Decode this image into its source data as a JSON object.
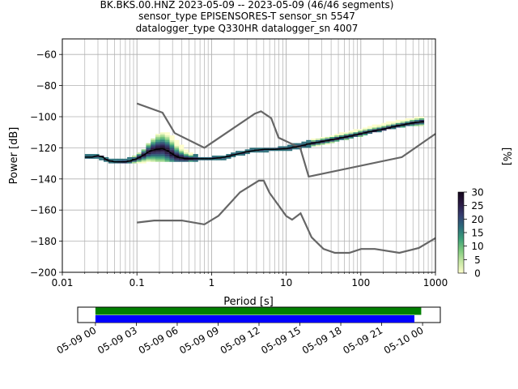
{
  "title": {
    "line1": "BK.BKS.00.HNZ   2023-05-09 -- 2023-05-09  (46/46 segments)",
    "line2": "sensor_type EPISENSORES-T sensor_sn 5547",
    "line3": "datalogger_type Q330HR datalogger_sn 4007"
  },
  "chart_data": [
    {
      "type": "heatmap",
      "subtype": "probabilistic-power-spectral-density",
      "xlabel": "Period [s]",
      "ylabel": "Power [dB]",
      "xscale": "log",
      "xlim": [
        0.01,
        1000
      ],
      "ylim": [
        -200,
        -50
      ],
      "x_ticks": [
        0.01,
        0.1,
        1,
        10,
        100,
        1000
      ],
      "x_tick_labels": [
        "0.01",
        "0.1",
        "1",
        "10",
        "100",
        "1000"
      ],
      "y_ticks": [
        -200,
        -180,
        -160,
        -140,
        -120,
        -100,
        -80,
        -60
      ],
      "y_tick_labels": [
        "−200",
        "−180",
        "−160",
        "−140",
        "−120",
        "−100",
        "−80",
        "−60"
      ],
      "grid": true,
      "colorbar": {
        "label": "[%]",
        "range": [
          0,
          30
        ],
        "ticks": [
          0,
          5,
          10,
          15,
          20,
          25,
          30
        ],
        "tick_labels": [
          "0",
          "5",
          "10",
          "15",
          "20",
          "25",
          "30"
        ],
        "colormap": [
          "#fefecc",
          "#c5e7a3",
          "#7cc97d",
          "#3a9d79",
          "#2c6a7b",
          "#353d6f",
          "#2a1a43",
          "#14051c"
        ]
      },
      "noise_models": {
        "color": "#666666",
        "high": {
          "x": [
            0.1,
            0.22,
            0.32,
            0.8,
            3.8,
            4.6,
            6.3,
            7.9,
            15.4,
            20,
            354.8,
            1000
          ],
          "y": [
            -91.5,
            -97.4,
            -110.5,
            -120,
            -98,
            -96.5,
            -101,
            -113.5,
            -120,
            -138.5,
            -126,
            -111
          ]
        },
        "low": {
          "x": [
            0.1,
            0.17,
            0.4,
            0.8,
            1.24,
            2.4,
            4.3,
            5,
            6,
            10,
            12,
            15.6,
            21.9,
            31.6,
            45,
            70,
            101,
            154,
            328,
            600,
            1000
          ],
          "y": [
            -168,
            -166.7,
            -166.7,
            -169.2,
            -163.7,
            -148.6,
            -141.1,
            -141.1,
            -149,
            -163.8,
            -166.2,
            -162.1,
            -177.5,
            -185,
            -187.5,
            -187.5,
            -185,
            -185,
            -187.5,
            -184.4,
            -178
          ]
        }
      },
      "mode_curve": {
        "color": "#000000",
        "x": [
          0.02,
          0.025,
          0.03,
          0.035,
          0.04,
          0.05,
          0.06,
          0.07,
          0.08,
          0.1,
          0.12,
          0.15,
          0.18,
          0.22,
          0.26,
          0.3,
          0.35,
          0.45,
          0.6,
          0.8,
          1,
          1.5,
          2,
          3,
          4,
          5,
          7,
          10,
          15,
          20,
          30,
          50,
          80,
          120,
          200,
          300,
          500,
          700
        ],
        "y": [
          -126,
          -126,
          -125,
          -126,
          -128,
          -129,
          -129,
          -129,
          -128.5,
          -127,
          -125,
          -122,
          -121,
          -120.5,
          -122,
          -124,
          -126,
          -127,
          -127,
          -127,
          -127,
          -126,
          -124.5,
          -122.5,
          -121.5,
          -121,
          -121,
          -120.5,
          -119,
          -117.5,
          -116,
          -114,
          -112,
          -110,
          -108,
          -106,
          -104,
          -103
        ]
      },
      "density_cloud": {
        "x": [
          0.02,
          0.03,
          0.04,
          0.05,
          0.07,
          0.1,
          0.13,
          0.16,
          0.2,
          0.25,
          0.3,
          0.4,
          0.5,
          0.7,
          1,
          1.5,
          2,
          3,
          4,
          6,
          8,
          10,
          12,
          15,
          20,
          30,
          40,
          60,
          80,
          100,
          150,
          200,
          300,
          400,
          500,
          700
        ],
        "lower_y": [
          -127,
          -126,
          -129,
          -130,
          -130,
          -130,
          -129,
          -129,
          -128.5,
          -128.5,
          -128.5,
          -128.5,
          -128.5,
          -128,
          -128,
          -127,
          -125.5,
          -123.5,
          -122.5,
          -122,
          -122,
          -122,
          -121,
          -120,
          -119,
          -118,
          -116.5,
          -114.5,
          -113,
          -112,
          -110,
          -108.5,
          -107,
          -106,
          -105.5,
          -105
        ],
        "upper_y": [
          -125,
          -124,
          -127,
          -128,
          -127,
          -125,
          -120,
          -115,
          -110,
          -110,
          -112.5,
          -119,
          -123,
          -126,
          -126,
          -125,
          -123.5,
          -121.5,
          -120.5,
          -120,
          -120,
          -119.5,
          -118,
          -117,
          -115,
          -114,
          -112.5,
          -110.5,
          -109,
          -108,
          -106,
          -104.5,
          -103,
          -102,
          -101,
          -100
        ]
      }
    },
    {
      "type": "bar",
      "subtype": "data-availability-timeline",
      "x_tick_labels": [
        "05-09 00",
        "05-09 03",
        "05-09 06",
        "05-09 09",
        "05-09 12",
        "05-09 15",
        "05-09 18",
        "05-09 21",
        "05-10 00"
      ],
      "xlim_hours": [
        -1.3,
        25.3
      ],
      "bars": [
        {
          "color": "#008000",
          "start_hour": 0,
          "end_hour": 23.9
        },
        {
          "color": "#0000ff",
          "start_hour": 0,
          "end_hour": 23.4
        }
      ]
    }
  ]
}
